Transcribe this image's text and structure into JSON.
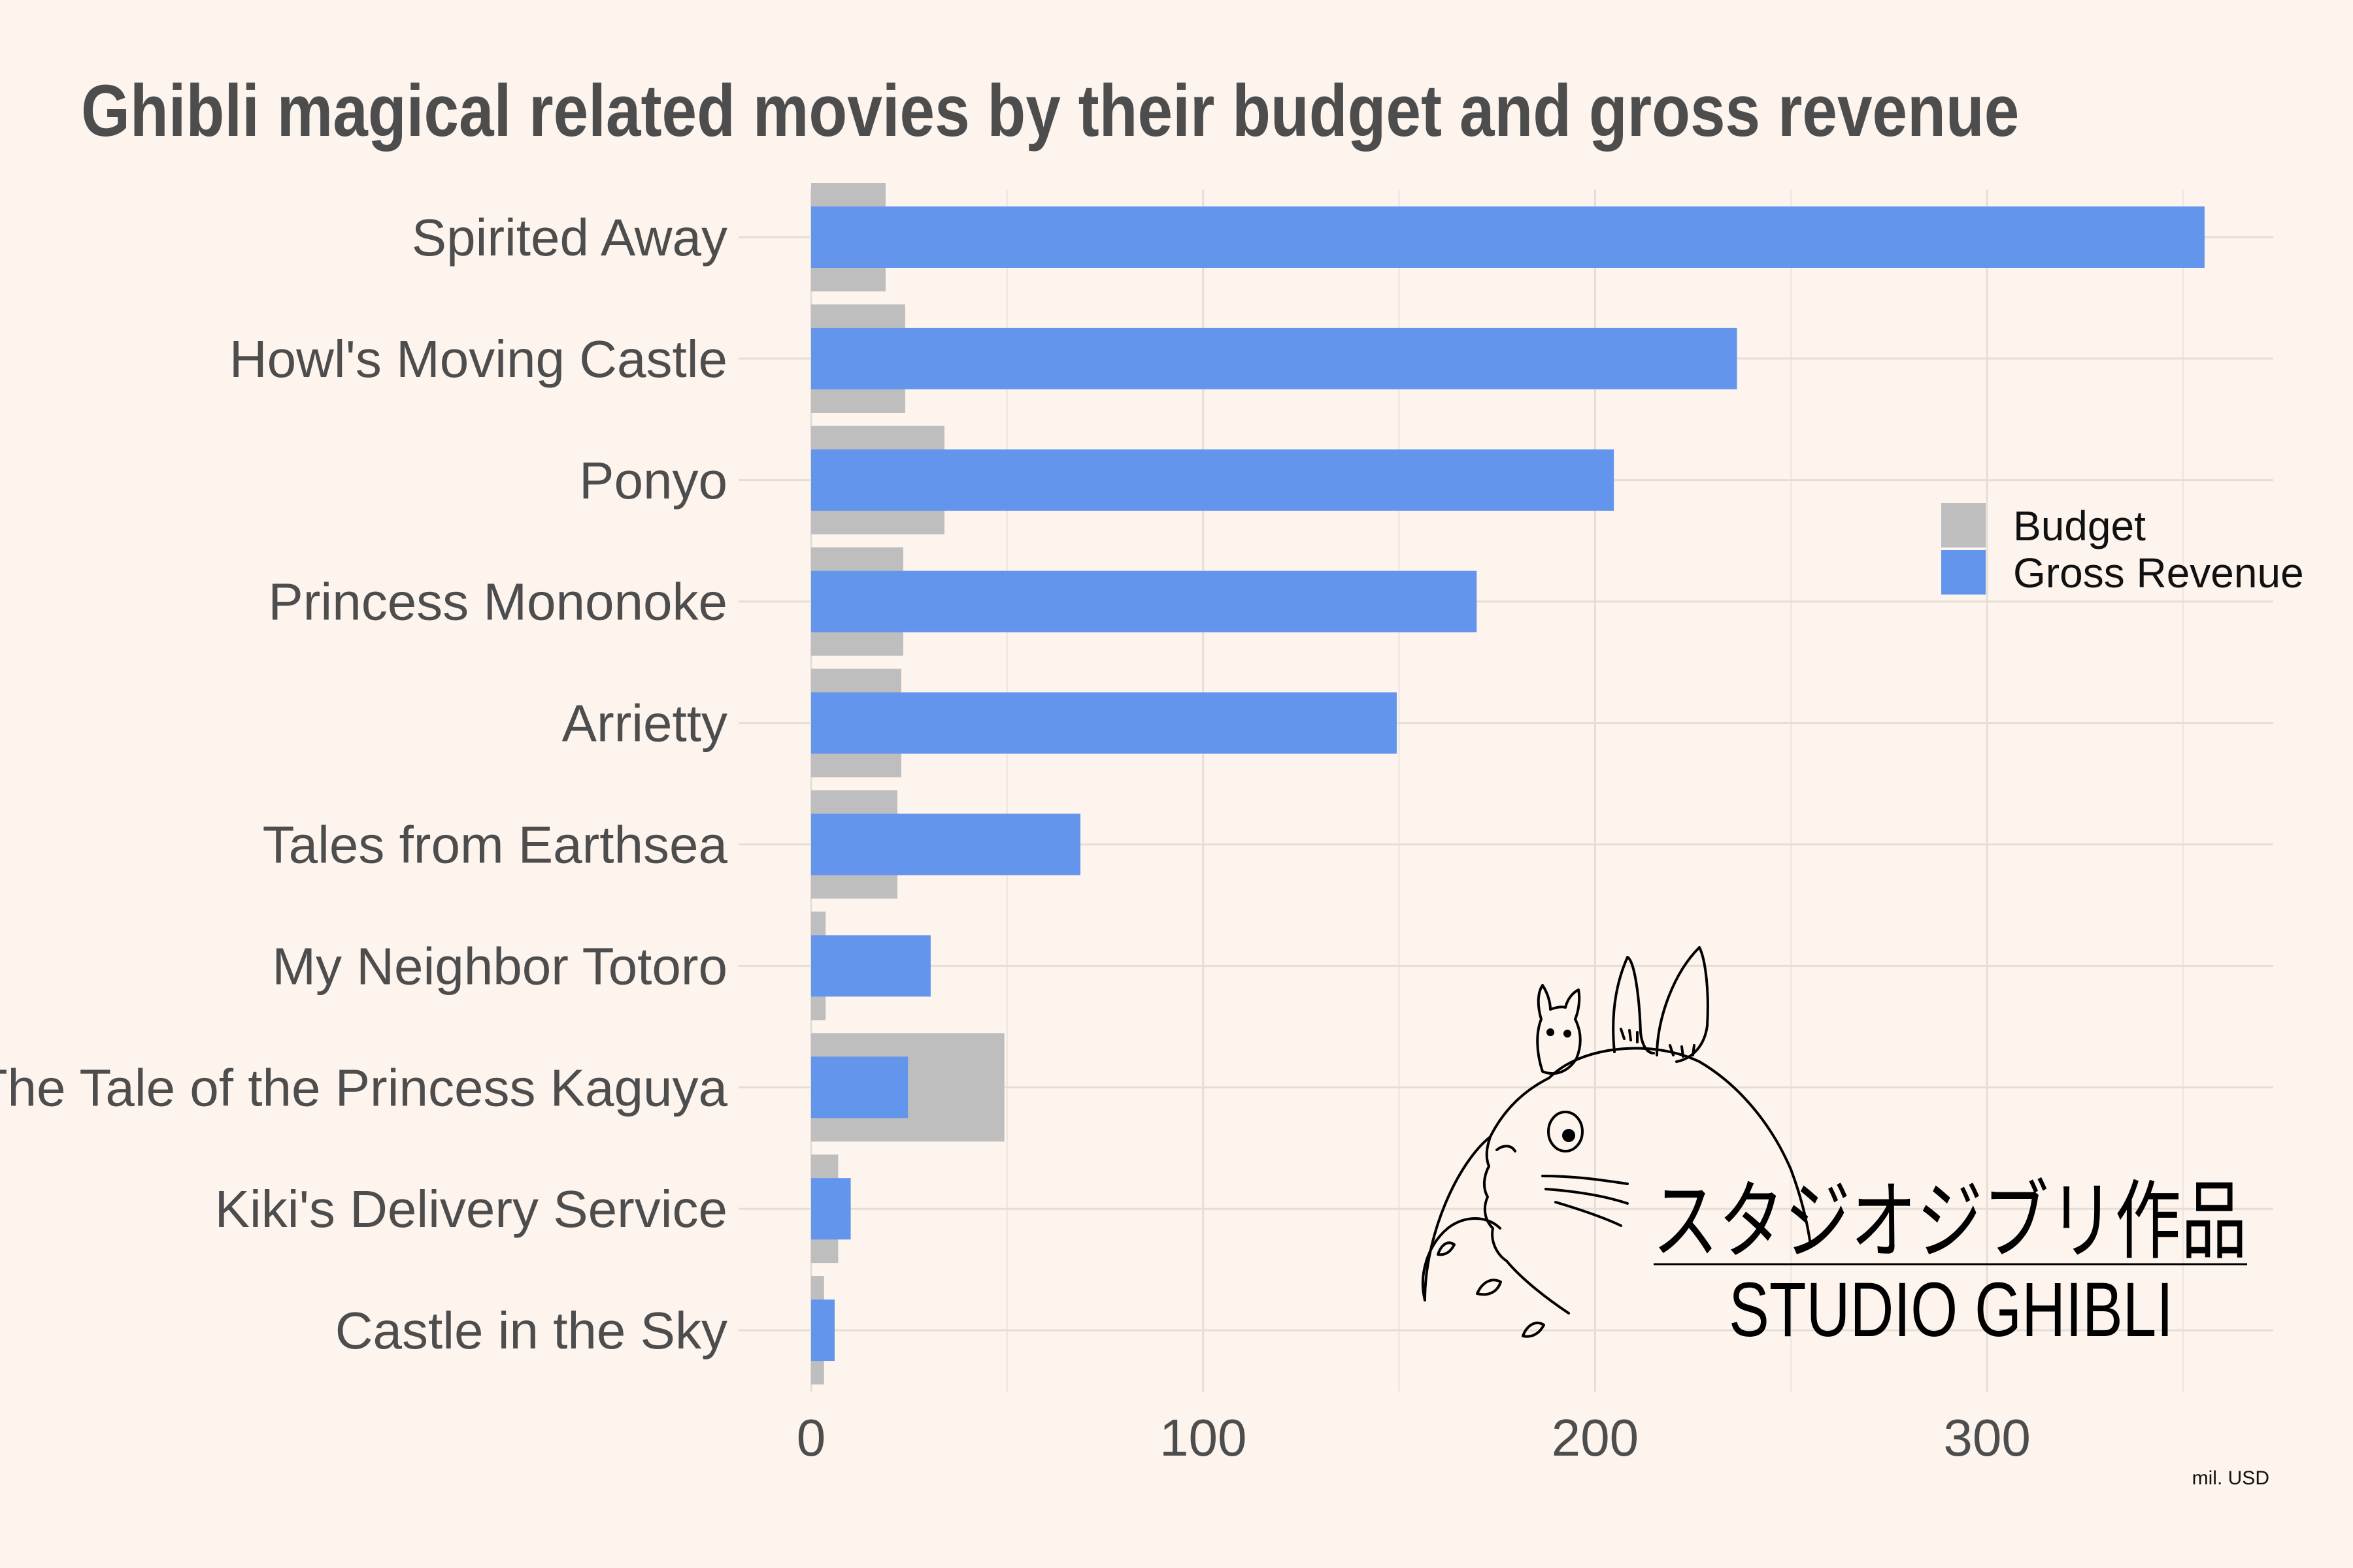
{
  "chart_data": {
    "type": "bar",
    "orientation": "horizontal",
    "title": "Ghibli magical related movies by their budget and gross revenue",
    "xlabel": "mil. USD",
    "ylabel": "",
    "xlim": [
      0,
      375
    ],
    "xticks": [
      "0",
      "100",
      "200",
      "300"
    ],
    "xtick_values": [
      0,
      100,
      200,
      300
    ],
    "grid": true,
    "legend_position": "right",
    "categories": [
      "Spirited Away",
      "Howl's Moving Castle",
      "Ponyo",
      "Princess Mononoke",
      "Arrietty",
      "Tales from Earthsea",
      "My Neighbor Totoro",
      "The Tale of the Princess Kaguya",
      "Kiki's Delivery Service",
      "Castle in the Sky"
    ],
    "series": [
      {
        "name": "Budget",
        "color": "#bebebe",
        "values": [
          19,
          24,
          34,
          23.5,
          23,
          22,
          3.7,
          49.3,
          6.9,
          3.3
        ]
      },
      {
        "name": "Gross Revenue",
        "color": "#6495ed",
        "values": [
          355.5,
          236.2,
          204.8,
          169.8,
          149.4,
          68.7,
          30.5,
          24.7,
          10.1,
          6.0
        ]
      }
    ]
  },
  "logo": {
    "kana": "スタジオジブリ作品",
    "latin": "STUDIO GHIBLI",
    "icon": "totoro-icon"
  }
}
